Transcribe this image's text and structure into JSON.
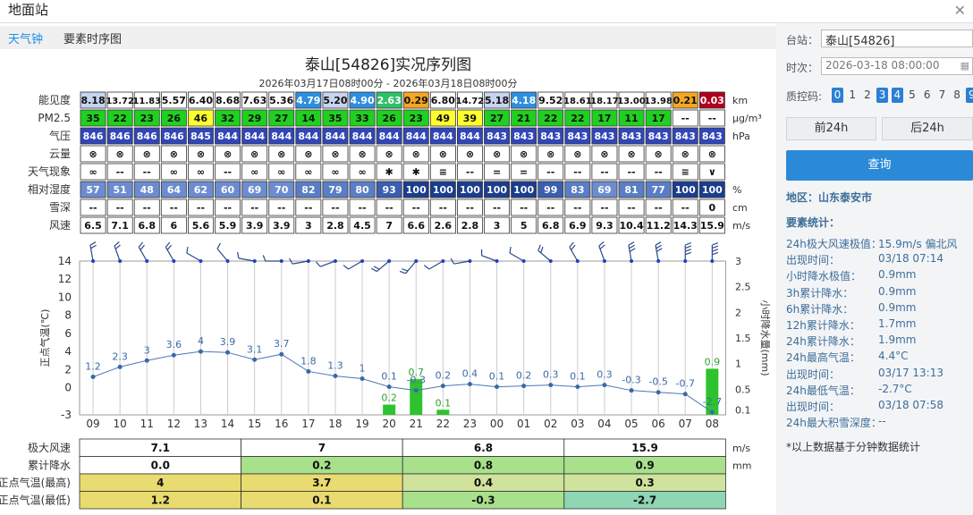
{
  "window": {
    "title": "地面站",
    "close_icon": "close-icon"
  },
  "tabs": [
    {
      "label": "天气钟",
      "active": true
    },
    {
      "label": "要素时序图",
      "active": false
    }
  ],
  "chart": {
    "title": "泰山[54826]实况序列图",
    "subtitle": "2026年03月17日08时00分 - 2026年03月18日08时00分"
  },
  "rows": [
    {
      "label": "能见度",
      "unit": "km",
      "values": [
        "8.18",
        "13.72",
        "11.83",
        "5.57",
        "6.40",
        "8.68",
        "7.63",
        "5.36",
        "4.79",
        "5.20",
        "4.90",
        "2.63",
        "0.29",
        "6.80",
        "14.72",
        "5.18",
        "4.18",
        "9.52",
        "18.61",
        "18.17",
        "13.00",
        "13.98",
        "0.21",
        "0.03"
      ],
      "colors": [
        "#c7d4ef",
        "#fff",
        "#fff",
        "#fff",
        "#fff",
        "#fff",
        "#fff",
        "#fff",
        "#2e8fe0",
        "#c7d4ef",
        "#2e8fe0",
        "#2ec06a",
        "#f5a623",
        "#fff",
        "#fff",
        "#c7d4ef",
        "#2e8fe0",
        "#fff",
        "#fff",
        "#fff",
        "#fff",
        "#fff",
        "#f5a623",
        "#b0001e"
      ]
    },
    {
      "label": "PM2.5",
      "unit": "μg/m³",
      "values": [
        "35",
        "22",
        "23",
        "26",
        "46",
        "32",
        "29",
        "27",
        "14",
        "35",
        "33",
        "26",
        "23",
        "49",
        "39",
        "27",
        "21",
        "22",
        "22",
        "17",
        "11",
        "17",
        "--",
        "--"
      ],
      "colors": [
        "#20d020",
        "#20d020",
        "#20d020",
        "#20d020",
        "#ffff30",
        "#20d020",
        "#20d020",
        "#20d020",
        "#20d020",
        "#20d020",
        "#20d020",
        "#20d020",
        "#20d020",
        "#ffff30",
        "#ffff30",
        "#20d020",
        "#20d020",
        "#20d020",
        "#20d020",
        "#20d020",
        "#20d020",
        "#20d020",
        "#fff",
        "#fff"
      ]
    },
    {
      "label": "气压",
      "unit": "hPa",
      "values": [
        "846",
        "846",
        "846",
        "846",
        "845",
        "844",
        "844",
        "844",
        "844",
        "844",
        "844",
        "844",
        "844",
        "844",
        "844",
        "843",
        "843",
        "843",
        "843",
        "843",
        "843",
        "843",
        "843",
        "843"
      ],
      "colors": "pressure"
    },
    {
      "label": "云量",
      "unit": "",
      "values": [
        "⊗",
        "⊗",
        "⊗",
        "⊗",
        "⊗",
        "⊗",
        "⊗",
        "⊗",
        "⊗",
        "⊗",
        "⊗",
        "⊗",
        "⊗",
        "⊗",
        "⊗",
        "⊗",
        "⊗",
        "⊗",
        "⊗",
        "⊗",
        "⊗",
        "⊗",
        "⊗",
        "⊗"
      ],
      "colors": "white"
    },
    {
      "label": "天气现象",
      "unit": "",
      "values": [
        "∞",
        "--",
        "--",
        "∞",
        "∞",
        "--",
        "∞",
        "∞",
        "∞",
        "∞",
        "∞",
        "✱",
        "✱",
        "≡",
        "--",
        "=",
        "=",
        "--",
        "--",
        "--",
        "--",
        "--",
        "≡",
        "∨"
      ],
      "colors": "white"
    },
    {
      "label": "相对湿度",
      "unit": "%",
      "values": [
        "57",
        "51",
        "48",
        "64",
        "62",
        "60",
        "69",
        "70",
        "82",
        "79",
        "80",
        "93",
        "100",
        "100",
        "100",
        "100",
        "100",
        "99",
        "83",
        "69",
        "81",
        "77",
        "100",
        "100"
      ],
      "colors": "humidity"
    },
    {
      "label": "雪深",
      "unit": "cm",
      "values": [
        "--",
        "--",
        "--",
        "--",
        "--",
        "--",
        "--",
        "--",
        "--",
        "--",
        "--",
        "--",
        "--",
        "--",
        "--",
        "--",
        "--",
        "--",
        "--",
        "--",
        "--",
        "--",
        "--",
        "0"
      ],
      "colors": "white"
    },
    {
      "label": "风速",
      "unit": "m/s",
      "values": [
        "6.5",
        "7.1",
        "6.8",
        "6",
        "5.6",
        "5.9",
        "3.9",
        "3.9",
        "3",
        "2.8",
        "4.5",
        "7",
        "6.6",
        "2.6",
        "2.8",
        "3",
        "5",
        "6.8",
        "6.9",
        "9.3",
        "10.4",
        "11.2",
        "14.3",
        "15.9"
      ],
      "colors": "white"
    }
  ],
  "chart_data": {
    "type": "line",
    "x": [
      "09",
      "10",
      "11",
      "12",
      "13",
      "14",
      "15",
      "16",
      "17",
      "18",
      "19",
      "20",
      "21",
      "22",
      "23",
      "00",
      "01",
      "02",
      "03",
      "04",
      "05",
      "06",
      "07",
      "08"
    ],
    "series": [
      {
        "values": [
          1.2,
          2.3,
          3,
          3.6,
          4,
          3.9,
          3.1,
          3.7,
          1.8,
          1.3,
          1,
          0.1,
          -0.3,
          0.2,
          0.4,
          0.1,
          0.2,
          0.3,
          0.1,
          0.3,
          -0.3,
          -0.5,
          -0.7,
          -2.7
        ]
      },
      {
        "type": "bar",
        "values": [
          0,
          0,
          0,
          0,
          0,
          0,
          0,
          0,
          0,
          0,
          0,
          0.2,
          0.7,
          0.1,
          0,
          0,
          0,
          0,
          0,
          0,
          0,
          0,
          0,
          0.9
        ]
      }
    ],
    "ylabel": "正点气温(℃)",
    "y2label": "小时降水量(mm)",
    "yticks": [
      -3,
      0,
      2,
      4,
      6,
      8,
      10,
      12,
      14
    ],
    "ylim": [
      -3,
      14
    ],
    "y2ticks": [
      "0.1",
      "0.5",
      "1",
      "1.5",
      "2",
      "2.5",
      "3"
    ],
    "y2lim": [
      0,
      3
    ],
    "wind_speed": [
      6.5,
      7.1,
      6.8,
      6,
      5.6,
      5.9,
      3.9,
      3.9,
      3,
      2.8,
      4.5,
      7,
      6.6,
      2.6,
      2.8,
      3,
      5,
      6.8,
      6.9,
      9.3,
      10.4,
      11.2,
      14.3,
      15.9
    ],
    "wind_dir": [
      350,
      340,
      330,
      330,
      300,
      320,
      280,
      270,
      260,
      250,
      240,
      230,
      220,
      240,
      260,
      290,
      300,
      310,
      330,
      340,
      350,
      350,
      0,
      0
    ]
  },
  "summary": {
    "rows": [
      {
        "label": "极大风速",
        "unit": "m/s",
        "values": [
          "7.1",
          "7",
          "6.8",
          "15.9"
        ],
        "colors": [
          "#fff",
          "#fff",
          "#fff",
          "#fff"
        ]
      },
      {
        "label": "累计降水",
        "unit": "mm",
        "values": [
          "0.0",
          "0.2",
          "0.8",
          "0.9"
        ],
        "colors": [
          "#fff",
          "#a8e08c",
          "#a8e08c",
          "#a8e08c"
        ]
      },
      {
        "label": "正点气温(最高)",
        "unit": "",
        "values": [
          "4",
          "3.7",
          "0.4",
          "0.3"
        ],
        "colors": [
          "#e8dc70",
          "#e8dc70",
          "#cfe39c",
          "#cfe39c"
        ]
      },
      {
        "label": "正点气温(最低)",
        "unit": "",
        "values": [
          "1.2",
          "0.1",
          "-0.3",
          "-2.7"
        ],
        "colors": [
          "#e8dc70",
          "#e8dc70",
          "#a8e08c",
          "#8ed6b4"
        ]
      }
    ]
  },
  "sidebar": {
    "station_label": "台站：",
    "station_value": "泰山[54826]",
    "time_label": "时次：",
    "time_value": "2026-03-18 08:00:00",
    "qc_label": "质控码:",
    "qc_codes": [
      "0",
      "1",
      "2",
      "3",
      "4",
      "5",
      "6",
      "7",
      "8",
      "9"
    ],
    "qc_on": [
      "0",
      "3",
      "4",
      "9"
    ],
    "prev_btn": "前24h",
    "next_btn": "后24h",
    "query_btn": "查询",
    "region": "地区：山东泰安市",
    "stats_title": "要素统计：",
    "stats": [
      {
        "k": "24h极大风速极值：",
        "v": "15.9m/s 偏北风"
      },
      {
        "k": "出现时间：",
        "v": "03/18 07:14"
      },
      {
        "k": "小时降水极值：",
        "v": "0.9mm"
      },
      {
        "k": "3h累计降水：",
        "v": "0.9mm"
      },
      {
        "k": "6h累计降水：",
        "v": "0.9mm"
      },
      {
        "k": "12h累计降水：",
        "v": "1.7mm"
      },
      {
        "k": "24h累计降水：",
        "v": "1.9mm"
      },
      {
        "k": "24h最高气温：",
        "v": "4.4°C"
      },
      {
        "k": "出现时间：",
        "v": "03/17 13:13"
      },
      {
        "k": "24h最低气温：",
        "v": "-2.7°C"
      },
      {
        "k": "出现时间：",
        "v": "03/18 07:58"
      },
      {
        "k": "24h最大积雪深度：",
        "v": "--"
      }
    ],
    "footnote": "*以上数据基于分钟数据统计"
  }
}
